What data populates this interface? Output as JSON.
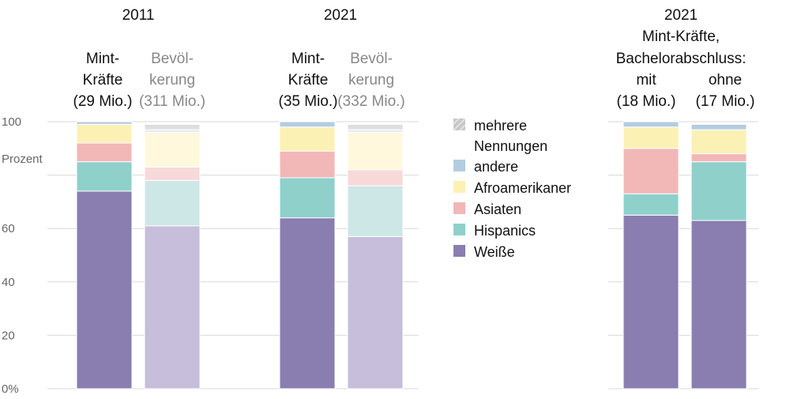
{
  "chart_data": {
    "type": "bar",
    "stacked": true,
    "ylabel": "Prozent",
    "ylim": [
      0,
      100
    ],
    "y_ticks": [
      "0%",
      "20",
      "40",
      "60",
      "100"
    ],
    "grid": true,
    "legend_placement": "center-right",
    "series_order": [
      "Weiße",
      "Hispanics",
      "Asiaten",
      "Afroamerikaner",
      "andere",
      "mehrere Nennungen"
    ],
    "legend": [
      {
        "name": "mehrere",
        "name2": "Nennungen",
        "color": "#c8c8c8"
      },
      {
        "name": "andere",
        "color": "#b3cde0"
      },
      {
        "name": "Afroamerikaner",
        "color": "#fbf1b5"
      },
      {
        "name": "Asiaten",
        "color": "#f2b7b7"
      },
      {
        "name": "Hispanics",
        "color": "#8fd0cb"
      },
      {
        "name": "Weiße",
        "color": "#8a7db0"
      }
    ],
    "groups": [
      {
        "title": "2011",
        "bars": [
          {
            "label1": "Mint-",
            "label2": "Kräfte",
            "label3": "(29 Mio.)",
            "faded": false,
            "values": [
              74,
              11,
              7,
              7,
              1,
              0
            ]
          },
          {
            "label1": "Bevöl-",
            "label2": "kerung",
            "label3": "(311 Mio.)",
            "faded": true,
            "values": [
              61,
              17,
              5,
              13,
              1,
              2
            ]
          }
        ]
      },
      {
        "title": "2021",
        "bars": [
          {
            "label1": "Mint-",
            "label2": "Kräfte",
            "label3": "(35 Mio.)",
            "faded": false,
            "values": [
              64,
              15,
              10,
              9,
              2,
              0
            ]
          },
          {
            "label1": "Bevöl-",
            "label2": "kerung",
            "label3": "(332 Mio.)",
            "faded": true,
            "values": [
              57,
              19,
              6,
              14,
              1,
              2
            ]
          }
        ]
      },
      {
        "title": "2021",
        "title2": "Mint-Kräfte,",
        "title3": "Bachelorabschluss:",
        "bars": [
          {
            "label1": "mit",
            "label3": "(18 Mio.)",
            "faded": false,
            "values": [
              65,
              8,
              17,
              8,
              2,
              0
            ]
          },
          {
            "label1": "ohne",
            "label3": "(17 Mio.)",
            "faded": false,
            "values": [
              63,
              22,
              3,
              9,
              2,
              0
            ]
          }
        ]
      }
    ]
  }
}
